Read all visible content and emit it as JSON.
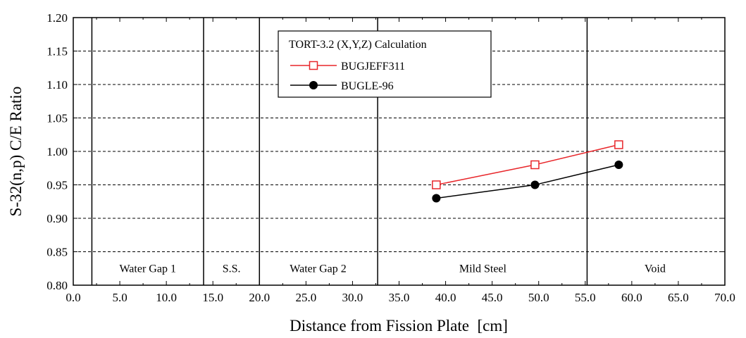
{
  "chart_data": {
    "type": "line",
    "xlabel": "Distance from Fission Plate  [cm]",
    "ylabel": "S-32(n,p) C/E Ratio",
    "xlim": [
      0,
      70
    ],
    "ylim": [
      0.8,
      1.2
    ],
    "x_ticks": [
      0,
      5,
      10,
      15,
      20,
      25,
      30,
      35,
      40,
      45,
      50,
      55,
      60,
      65,
      70
    ],
    "x_tick_labels": [
      "0.0",
      "5.0",
      "10.0",
      "15.0",
      "20.0",
      "25.0",
      "30.0",
      "35.0",
      "40.0",
      "45.0",
      "50.0",
      "55.0",
      "60.0",
      "65.0",
      "70.0"
    ],
    "y_ticks": [
      0.8,
      0.85,
      0.9,
      0.95,
      1.0,
      1.05,
      1.1,
      1.15,
      1.2
    ],
    "y_tick_labels": [
      "0.80",
      "0.85",
      "0.90",
      "0.95",
      "1.00",
      "1.05",
      "1.10",
      "1.15",
      "1.20"
    ],
    "grid": "horizontal dashed",
    "region_boundaries": [
      2.0,
      14.0,
      20.0,
      32.7,
      55.2
    ],
    "regions": [
      {
        "label": "Water Gap 1",
        "x_center": 8.0
      },
      {
        "label": "S.S.",
        "x_center": 17.0
      },
      {
        "label": "Water Gap 2",
        "x_center": 26.3
      },
      {
        "label": "Mild Steel",
        "x_center": 44.0
      },
      {
        "label": "Void",
        "x_center": 62.5
      }
    ],
    "legend": {
      "title": "TORT-3.2 (X,Y,Z) Calculation",
      "placement": "top-center"
    },
    "series": [
      {
        "name": "BUGJEFF311",
        "color": "#e8262a",
        "marker": "open-square",
        "x": [
          39.0,
          49.6,
          58.6
        ],
        "y": [
          0.95,
          0.98,
          1.01
        ]
      },
      {
        "name": "BUGLE-96",
        "color": "#000000",
        "marker": "filled-circle",
        "x": [
          39.0,
          49.6,
          58.6
        ],
        "y": [
          0.93,
          0.95,
          0.98
        ]
      }
    ]
  }
}
